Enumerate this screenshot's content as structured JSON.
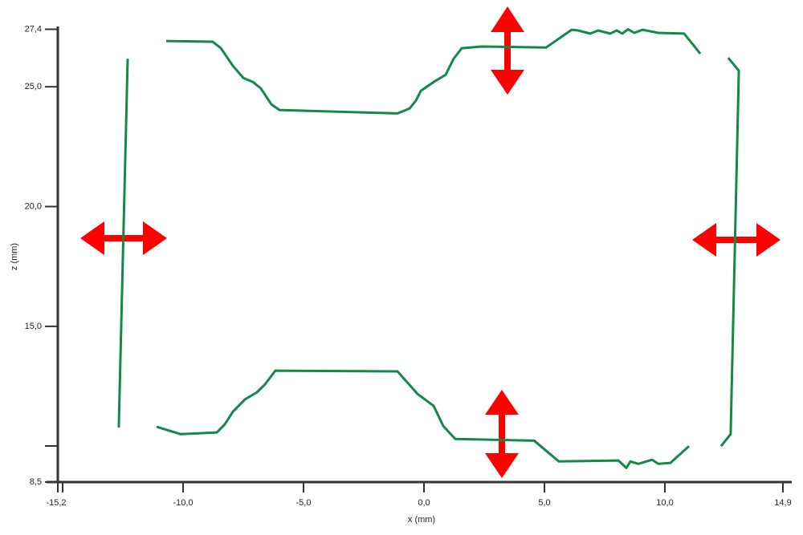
{
  "chart_data": {
    "type": "line",
    "x_label": "x (mm)",
    "y_label": "z (mm)",
    "xlim": [
      -15.2,
      14.9
    ],
    "xticks": [
      {
        "value": -15.2,
        "label": "-15,2"
      },
      {
        "value": -10,
        "label": "-10,0"
      },
      {
        "value": -5,
        "label": "-5,0"
      },
      {
        "value": 0,
        "label": "0,0"
      },
      {
        "value": 5,
        "label": "5,0"
      },
      {
        "value": 10,
        "label": "10,0"
      },
      {
        "value": 14.9,
        "label": "14,9"
      }
    ],
    "ylim": [
      8.5,
      27.4
    ],
    "yticks": [
      {
        "value": 8.5,
        "label": "8,5"
      },
      {
        "value": 15,
        "label": "15,0"
      },
      {
        "value": 20,
        "label": "20,0"
      },
      {
        "value": 25,
        "label": "25,0"
      },
      {
        "value": 27.4,
        "label": "27,4"
      }
    ],
    "series": [
      {
        "color": "#14874a",
        "x": [
          -12.3,
          -12.67
        ],
        "values": [
          26.17,
          10.77
        ]
      },
      {
        "color": "#14874a",
        "x": [
          -10.7,
          -8.77,
          -8.43,
          -7.93,
          -7.5,
          -7.1,
          -6.77,
          -6.33,
          -6.0,
          -1.1,
          -0.6,
          -0.33,
          -0.13,
          0.4,
          0.9,
          1.23,
          1.57,
          2.4,
          5.07,
          6.13,
          6.4,
          6.9,
          7.23,
          7.73,
          8.0,
          8.23,
          8.47,
          8.73,
          9.07,
          9.73,
          10.8,
          11.47
        ],
        "values": [
          26.91,
          26.88,
          26.61,
          25.87,
          25.37,
          25.2,
          24.93,
          24.26,
          24.03,
          23.89,
          24.09,
          24.43,
          24.83,
          25.2,
          25.5,
          26.17,
          26.61,
          26.68,
          26.64,
          27.38,
          27.35,
          27.22,
          27.35,
          27.22,
          27.35,
          27.22,
          27.4,
          27.25,
          27.38,
          27.25,
          27.22,
          26.38
        ]
      },
      {
        "color": "#14874a",
        "x": [
          12.63,
          13.07,
          12.73,
          12.33
        ],
        "values": [
          26.21,
          25.67,
          10.5,
          10.0
        ]
      },
      {
        "color": "#14874a",
        "x": [
          -11.1,
          -10.1,
          -8.6,
          -8.27,
          -7.93,
          -7.43,
          -6.93,
          -6.6,
          -6.17,
          -1.1,
          -0.27,
          0.4,
          0.8,
          1.3,
          4.57,
          5.6,
          8.07,
          8.4,
          8.57,
          8.9,
          9.47,
          9.73,
          10.23,
          11.0
        ],
        "values": [
          10.81,
          10.5,
          10.57,
          10.91,
          11.44,
          11.95,
          12.25,
          12.58,
          13.15,
          13.12,
          12.18,
          11.68,
          10.84,
          10.3,
          10.23,
          9.36,
          9.4,
          9.09,
          9.36,
          9.26,
          9.43,
          9.26,
          9.3,
          10.0
        ]
      }
    ]
  }
}
